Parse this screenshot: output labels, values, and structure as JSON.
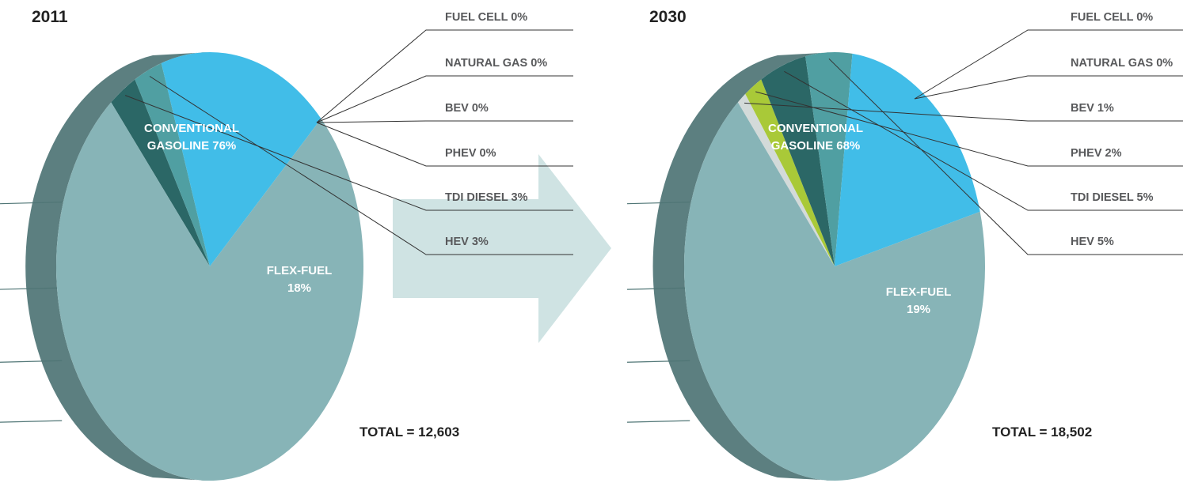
{
  "chart_data": [
    {
      "type": "pie",
      "title": "2011",
      "total_label": "TOTAL = 12,603",
      "slices": [
        {
          "name": "CONVENTIONAL GASOLINE",
          "value": 76,
          "label_lines": [
            "CONVENTIONAL",
            "GASOLINE 76%"
          ],
          "color": "#87b4b7"
        },
        {
          "name": "FLEX-FUEL",
          "value": 18,
          "label_lines": [
            "FLEX-FUEL",
            "18%"
          ],
          "color": "#41bde8"
        },
        {
          "name": "HEV",
          "value": 3,
          "color": "#509fa2"
        },
        {
          "name": "TDI DIESEL",
          "value": 3,
          "color": "#2b6766"
        },
        {
          "name": "PHEV",
          "value": 0,
          "color": "#a9c938"
        },
        {
          "name": "BEV",
          "value": 0,
          "color": "#d3dad9"
        },
        {
          "name": "NATURAL GAS",
          "value": 0,
          "color": "#b7bfbe"
        },
        {
          "name": "FUEL CELL",
          "value": 0,
          "color": "#eeeeee"
        }
      ],
      "legend": [
        "FUEL CELL 0%",
        "NATURAL GAS 0%",
        "BEV 0%",
        "PHEV 0%",
        "TDI DIESEL 3%",
        "HEV 3%"
      ]
    },
    {
      "type": "pie",
      "title": "2030",
      "total_label": "TOTAL = 18,502",
      "slices": [
        {
          "name": "CONVENTIONAL GASOLINE",
          "value": 68,
          "label_lines": [
            "CONVENTIONAL",
            "GASOLINE 68%"
          ],
          "color": "#87b4b7"
        },
        {
          "name": "FLEX-FUEL",
          "value": 19,
          "label_lines": [
            "FLEX-FUEL",
            "19%"
          ],
          "color": "#41bde8"
        },
        {
          "name": "HEV",
          "value": 5,
          "color": "#509fa2"
        },
        {
          "name": "TDI DIESEL",
          "value": 5,
          "color": "#2b6766"
        },
        {
          "name": "PHEV",
          "value": 2,
          "color": "#a9c938"
        },
        {
          "name": "BEV",
          "value": 1,
          "color": "#d3dad9"
        },
        {
          "name": "NATURAL GAS",
          "value": 0,
          "color": "#b7bfbe"
        },
        {
          "name": "FUEL CELL",
          "value": 0,
          "color": "#eeeeee"
        }
      ],
      "legend": [
        "FUEL CELL 0%",
        "NATURAL GAS 0%",
        "BEV 1%",
        "PHEV 2%",
        "TDI DIESEL 5%",
        "HEV 5%"
      ]
    }
  ],
  "colors": {
    "side_dark": "#4f7575",
    "side_mid": "#5c7f80",
    "arrow": "#cfe3e3",
    "leader": "#333333",
    "label_text": "#58595b"
  }
}
